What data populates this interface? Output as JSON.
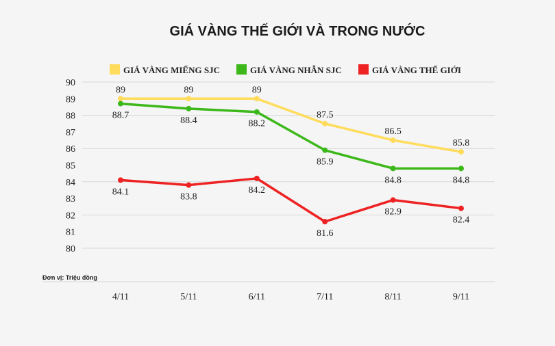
{
  "chart_data": {
    "type": "line",
    "title": "GIÁ VÀNG THẾ GIỚI VÀ TRONG NƯỚC",
    "unit_note": "Đơn vị: Triệu đồng",
    "categories": [
      "4/11",
      "5/11",
      "6/11",
      "7/11",
      "8/11",
      "9/11"
    ],
    "ylim": [
      80,
      90
    ],
    "yticks": [
      "80",
      "81",
      "82",
      "83",
      "84",
      "85",
      "86",
      "87",
      "88",
      "89",
      "90"
    ],
    "grid": true,
    "legend_position": "top",
    "series": [
      {
        "name": "GIÁ VÀNG MIẾNG SJC",
        "color": "#ffdc5c",
        "values": [
          89,
          89,
          89,
          87.5,
          86.5,
          85.8
        ],
        "labels": [
          "89",
          "89",
          "89",
          "87.5",
          "86.5",
          "85.8"
        ],
        "label_side": "above"
      },
      {
        "name": "GIÁ VÀNG NHẪN SJC",
        "color": "#3cb81a",
        "values": [
          88.7,
          88.4,
          88.2,
          85.9,
          84.8,
          84.8
        ],
        "labels": [
          "88.7",
          "88.4",
          "88.2",
          "85.9",
          "84.8",
          "84.8"
        ],
        "label_side": "below"
      },
      {
        "name": "GIÁ VÀNG THẾ GIỚI",
        "color": "#ee2222",
        "values": [
          84.1,
          83.8,
          84.2,
          81.6,
          82.9,
          82.4
        ],
        "labels": [
          "84.1",
          "83.8",
          "84.2",
          "81.6",
          "82.9",
          "82.4"
        ],
        "label_side": "below"
      }
    ]
  }
}
